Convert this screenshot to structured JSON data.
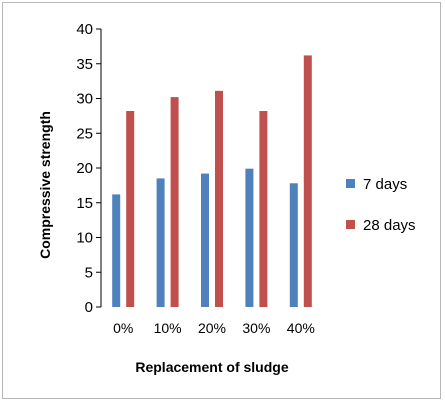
{
  "chart_data": {
    "type": "bar",
    "title": "",
    "xlabel": "Replacement of sludge",
    "ylabel": "Compressive strength",
    "categories": [
      "0%",
      "10%",
      "20%",
      "30%",
      "40%"
    ],
    "series": [
      {
        "name": "7 days",
        "color": "#4f81bd",
        "values": [
          16.2,
          18.5,
          19.2,
          19.9,
          17.8
        ]
      },
      {
        "name": "28 days",
        "color": "#c0504d",
        "values": [
          28.2,
          30.2,
          31.1,
          28.2,
          36.2
        ]
      }
    ],
    "ylim": [
      0,
      40
    ],
    "yticks": [
      0,
      5,
      10,
      15,
      20,
      25,
      30,
      35,
      40
    ],
    "grid": false,
    "legend_position": "right"
  }
}
